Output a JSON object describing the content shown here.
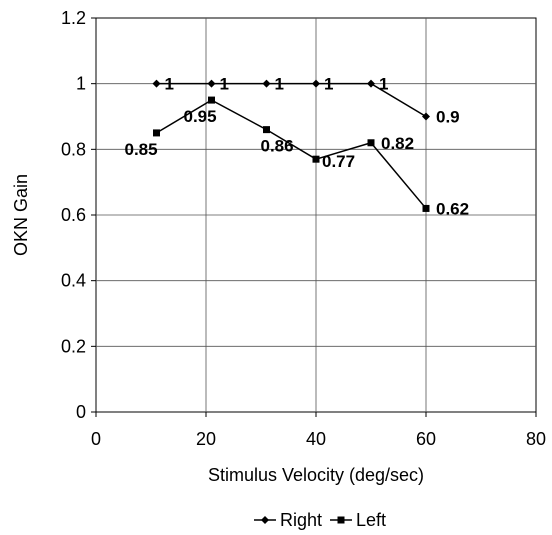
{
  "chart_data": {
    "type": "line",
    "title": "",
    "xlabel": "Stimulus Velocity (deg/sec)",
    "ylabel": "OKN Gain",
    "xlim": [
      0,
      80
    ],
    "ylim": [
      0,
      1.2
    ],
    "xticks": [
      "0",
      "20",
      "40",
      "60",
      "80"
    ],
    "yticks": [
      "0",
      "0.2",
      "0.4",
      "0.6",
      "0.8",
      "1",
      "1.2"
    ],
    "grid": "vertical and horizontal",
    "legend": "bottom-center",
    "series": [
      {
        "name": "Right",
        "marker": "diamond",
        "x": [
          11,
          21,
          31,
          40,
          50,
          60
        ],
        "y": [
          1,
          1,
          1,
          1,
          1,
          0.9
        ],
        "labels": [
          "1",
          "1",
          "1",
          "1",
          "1",
          "0.9"
        ]
      },
      {
        "name": "Left",
        "marker": "square",
        "x": [
          11,
          21,
          31,
          40,
          50,
          60
        ],
        "y": [
          0.85,
          0.95,
          0.86,
          0.77,
          0.82,
          0.62
        ],
        "labels": [
          "0.85",
          "0.95",
          "0.86",
          "0.77",
          "0.82",
          "0.62"
        ]
      }
    ]
  }
}
